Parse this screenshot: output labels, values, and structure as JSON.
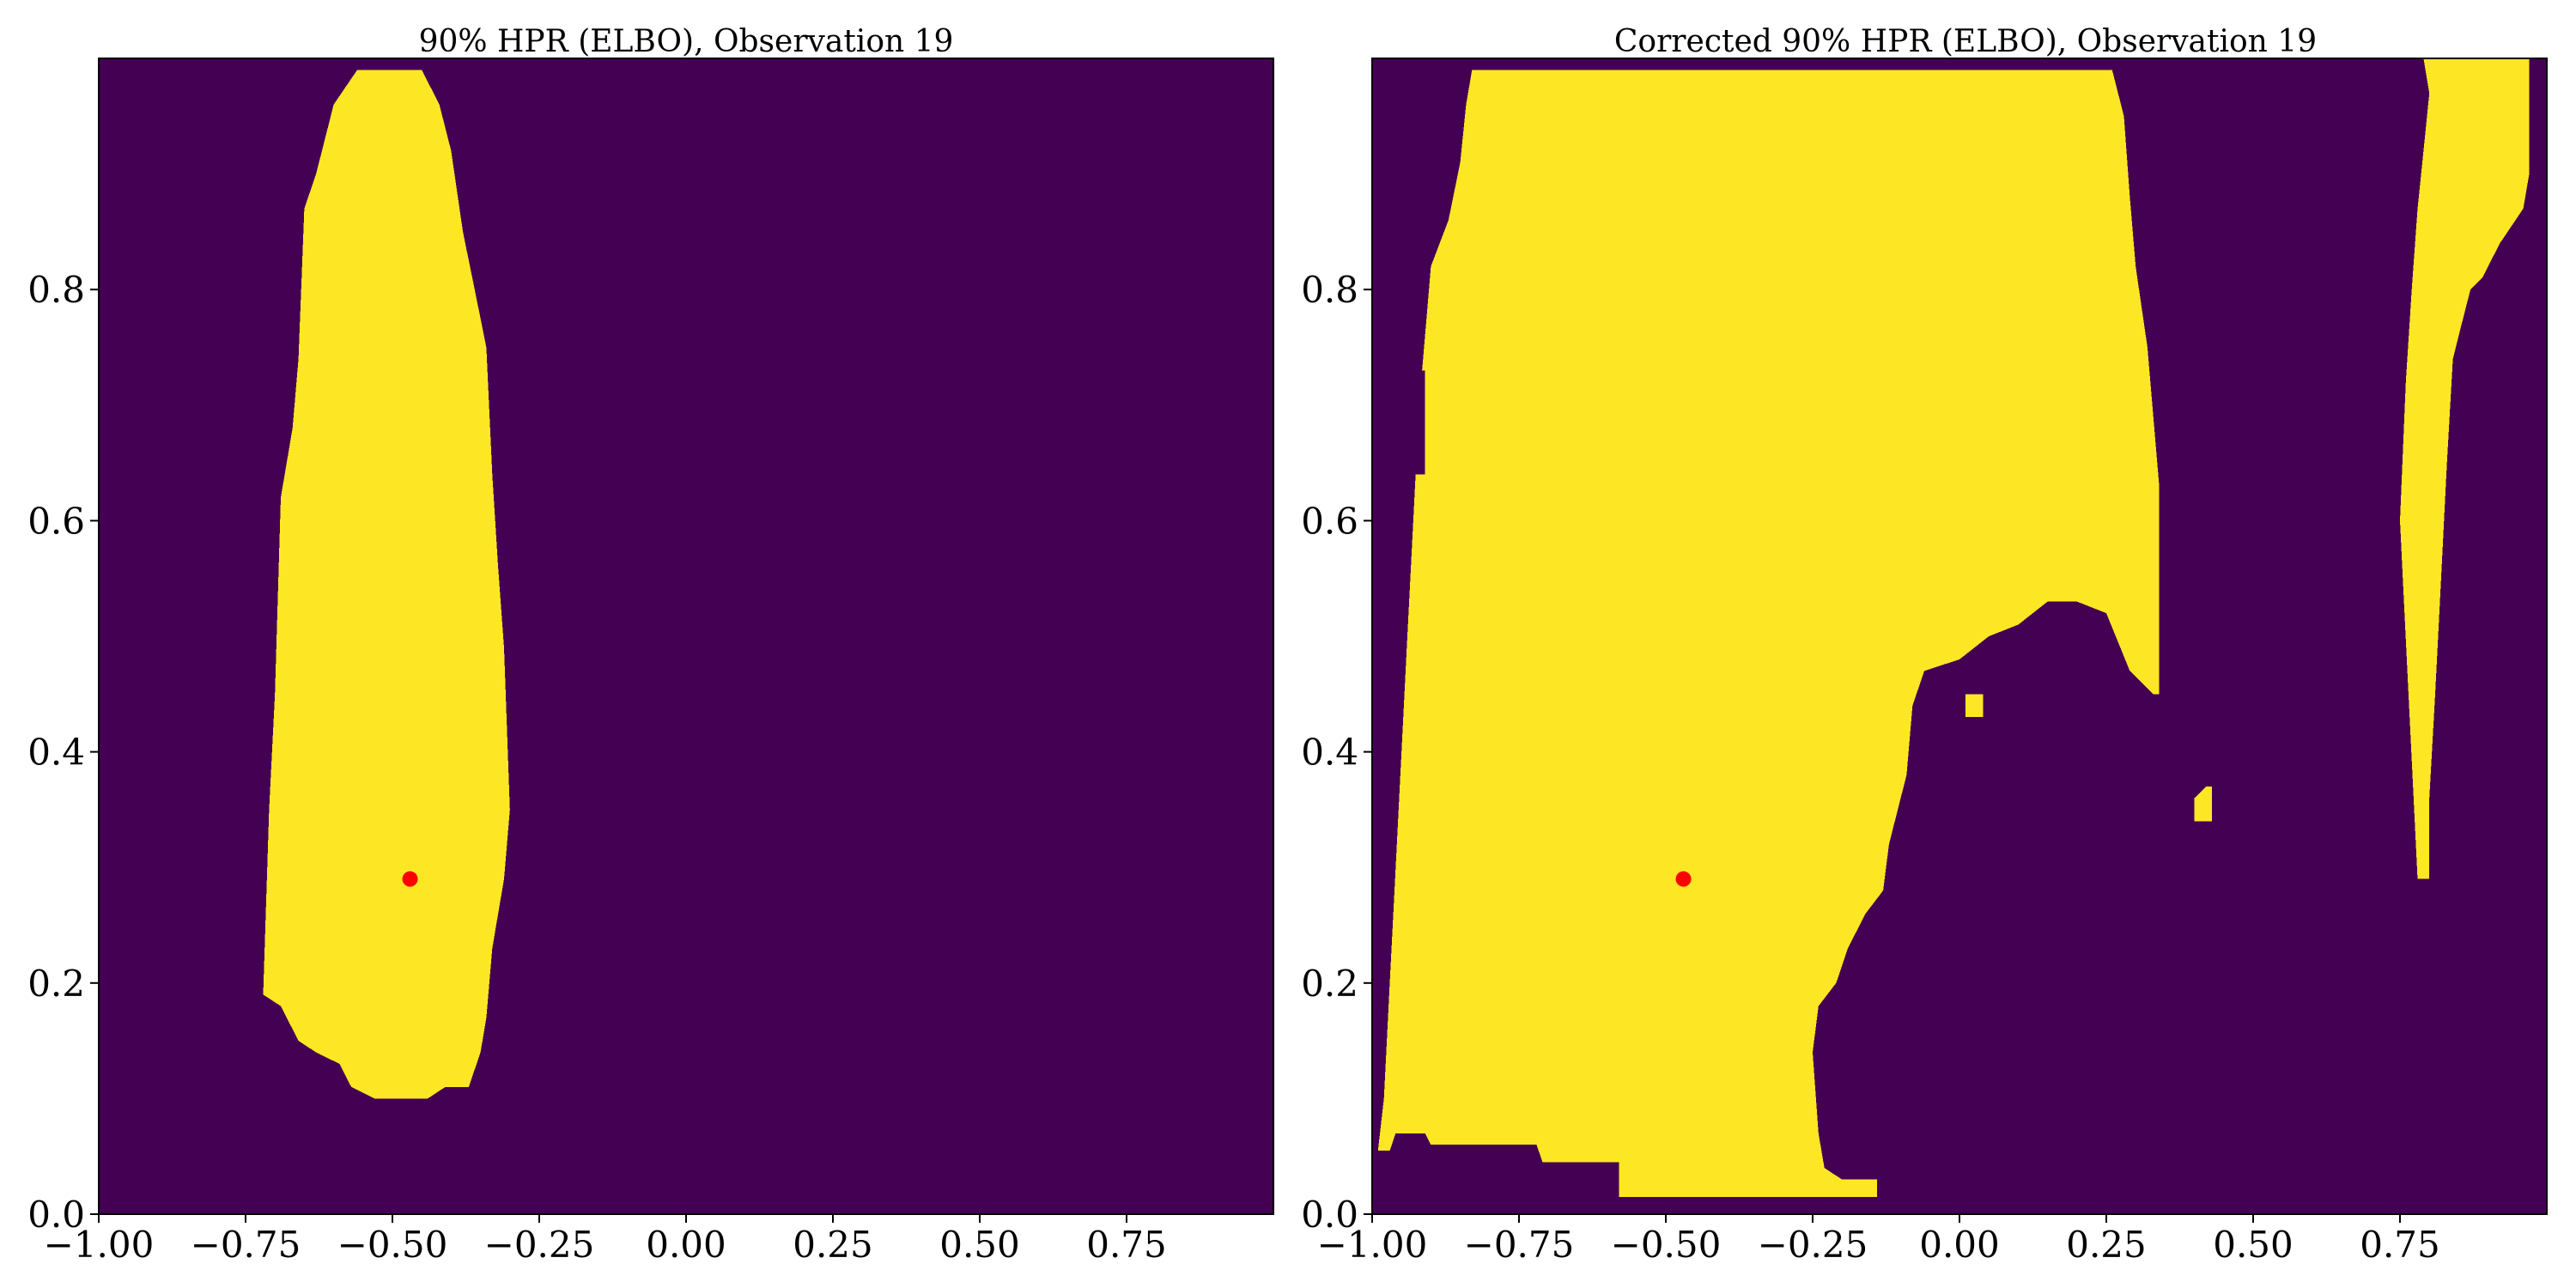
{
  "chart_data": [
    {
      "type": "heatmap",
      "title": "90% HPR (ELBO), Observation 19",
      "xlim": [
        -1.0,
        1.0
      ],
      "ylim": [
        0.0,
        1.0
      ],
      "xticks": [
        -1.0,
        -0.75,
        -0.5,
        -0.25,
        0.0,
        0.25,
        0.5,
        0.75
      ],
      "xtick_labels": [
        "−1.00",
        "−0.75",
        "−0.50",
        "−0.25",
        "0.00",
        "0.25",
        "0.50",
        "0.75"
      ],
      "yticks": [
        0.0,
        0.2,
        0.4,
        0.6,
        0.8
      ],
      "ytick_labels": [
        "0.0",
        "0.2",
        "0.4",
        "0.6",
        "0.8"
      ],
      "grid": false,
      "colors": {
        "outside": "#440154",
        "inside": "#fde725",
        "marker": "#ff0000"
      },
      "marker": {
        "x": -0.47,
        "y": 0.29
      },
      "region": [
        [
          [
            -0.69,
            0.18
          ],
          [
            -0.72,
            0.19
          ],
          [
            -0.71,
            0.35
          ],
          [
            -0.7,
            0.45
          ],
          [
            -0.69,
            0.62
          ],
          [
            -0.67,
            0.68
          ],
          [
            -0.66,
            0.74
          ],
          [
            -0.65,
            0.87
          ],
          [
            -0.63,
            0.9
          ],
          [
            -0.6,
            0.96
          ],
          [
            -0.56,
            0.99
          ],
          [
            -0.45,
            0.99
          ],
          [
            -0.42,
            0.96
          ],
          [
            -0.4,
            0.92
          ],
          [
            -0.38,
            0.85
          ],
          [
            -0.36,
            0.8
          ],
          [
            -0.34,
            0.75
          ],
          [
            -0.33,
            0.64
          ],
          [
            -0.32,
            0.56
          ],
          [
            -0.31,
            0.49
          ],
          [
            -0.3,
            0.35
          ],
          [
            -0.31,
            0.29
          ],
          [
            -0.33,
            0.23
          ],
          [
            -0.34,
            0.17
          ],
          [
            -0.35,
            0.14
          ],
          [
            -0.37,
            0.11
          ],
          [
            -0.41,
            0.11
          ],
          [
            -0.44,
            0.1
          ],
          [
            -0.49,
            0.1
          ],
          [
            -0.53,
            0.1
          ],
          [
            -0.57,
            0.11
          ],
          [
            -0.59,
            0.13
          ],
          [
            -0.63,
            0.14
          ],
          [
            -0.66,
            0.15
          ]
        ]
      ]
    },
    {
      "type": "heatmap",
      "title": "Corrected 90% HPR (ELBO), Observation 19",
      "xlim": [
        -1.0,
        1.0
      ],
      "ylim": [
        0.0,
        1.0
      ],
      "xticks": [
        -1.0,
        -0.75,
        -0.5,
        -0.25,
        0.0,
        0.25,
        0.5,
        0.75
      ],
      "xtick_labels": [
        "−1.00",
        "−0.75",
        "−0.50",
        "−0.25",
        "0.00",
        "0.25",
        "0.50",
        "0.75"
      ],
      "yticks": [
        0.0,
        0.2,
        0.4,
        0.6,
        0.8
      ],
      "ytick_labels": [
        "0.0",
        "0.2",
        "0.4",
        "0.6",
        "0.8"
      ],
      "grid": false,
      "colors": {
        "outside": "#440154",
        "inside": "#fde725",
        "marker": "#ff0000"
      },
      "marker": {
        "x": -0.47,
        "y": 0.29
      },
      "region": [
        [
          [
            -0.99,
            0.055
          ],
          [
            -0.97,
            0.055
          ],
          [
            -0.96,
            0.07
          ],
          [
            -0.91,
            0.07
          ],
          [
            -0.9,
            0.06
          ],
          [
            -0.72,
            0.06
          ],
          [
            -0.71,
            0.045
          ],
          [
            -0.58,
            0.045
          ],
          [
            -0.58,
            0.015
          ],
          [
            -0.14,
            0.015
          ],
          [
            -0.14,
            0.03
          ],
          [
            -0.2,
            0.03
          ],
          [
            -0.23,
            0.04
          ],
          [
            -0.24,
            0.07
          ],
          [
            -0.25,
            0.14
          ],
          [
            -0.24,
            0.18
          ],
          [
            -0.21,
            0.2
          ],
          [
            -0.19,
            0.23
          ],
          [
            -0.16,
            0.26
          ],
          [
            -0.13,
            0.28
          ],
          [
            -0.12,
            0.32
          ],
          [
            -0.09,
            0.38
          ],
          [
            -0.08,
            0.44
          ],
          [
            -0.06,
            0.47
          ],
          [
            0.0,
            0.48
          ],
          [
            0.05,
            0.5
          ],
          [
            0.1,
            0.51
          ],
          [
            0.15,
            0.53
          ],
          [
            0.2,
            0.53
          ],
          [
            0.25,
            0.52
          ],
          [
            0.29,
            0.47
          ],
          [
            0.33,
            0.45
          ],
          [
            0.34,
            0.45
          ],
          [
            0.34,
            0.63
          ],
          [
            0.32,
            0.75
          ],
          [
            0.3,
            0.82
          ],
          [
            0.29,
            0.88
          ],
          [
            0.28,
            0.95
          ],
          [
            0.26,
            0.99
          ],
          [
            -0.83,
            0.99
          ],
          [
            -0.84,
            0.96
          ],
          [
            -0.85,
            0.91
          ],
          [
            -0.87,
            0.86
          ],
          [
            -0.9,
            0.82
          ],
          [
            -0.91,
            0.76
          ],
          [
            -0.92,
            0.7
          ],
          [
            -0.93,
            0.6
          ],
          [
            -0.94,
            0.5
          ],
          [
            -0.95,
            0.4
          ],
          [
            -0.96,
            0.3
          ],
          [
            -0.97,
            0.2
          ],
          [
            -0.98,
            0.1
          ]
        ],
        [
          [
            0.78,
            0.29
          ],
          [
            0.8,
            0.29
          ],
          [
            0.8,
            0.36
          ],
          [
            0.81,
            0.45
          ],
          [
            0.82,
            0.55
          ],
          [
            0.83,
            0.65
          ],
          [
            0.84,
            0.74
          ],
          [
            0.86,
            0.78
          ],
          [
            0.87,
            0.8
          ],
          [
            0.89,
            0.81
          ],
          [
            0.92,
            0.84
          ],
          [
            0.96,
            0.87
          ],
          [
            0.97,
            0.9
          ],
          [
            0.97,
            1.0
          ],
          [
            0.79,
            1.0
          ],
          [
            0.8,
            0.97
          ],
          [
            0.79,
            0.92
          ],
          [
            0.78,
            0.87
          ],
          [
            0.77,
            0.8
          ],
          [
            0.76,
            0.72
          ],
          [
            0.75,
            0.6
          ]
        ],
        [
          [
            0.4,
            0.34
          ],
          [
            0.43,
            0.34
          ],
          [
            0.43,
            0.37
          ],
          [
            0.42,
            0.37
          ],
          [
            0.4,
            0.36
          ]
        ],
        [
          [
            0.01,
            0.43
          ],
          [
            0.04,
            0.43
          ],
          [
            0.04,
            0.45
          ],
          [
            0.01,
            0.45
          ]
        ]
      ],
      "holes": [
        [
          [
            -0.93,
            0.64
          ],
          [
            -0.91,
            0.64
          ],
          [
            -0.91,
            0.73
          ],
          [
            -0.92,
            0.73
          ],
          [
            -0.93,
            0.69
          ]
        ]
      ]
    }
  ]
}
